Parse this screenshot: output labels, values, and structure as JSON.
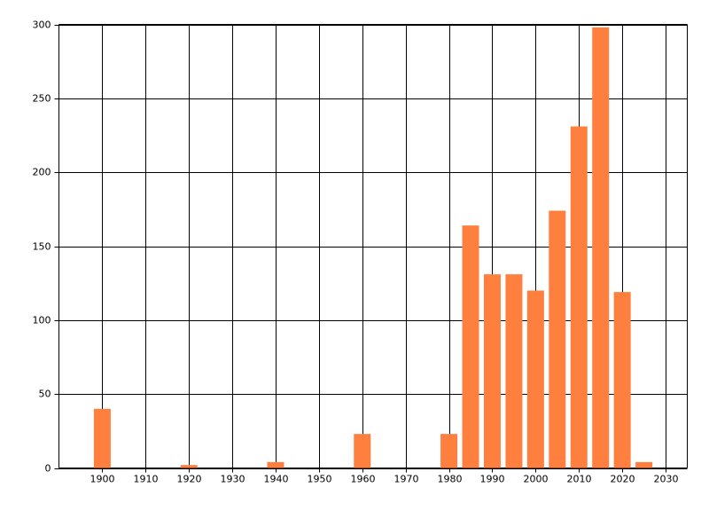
{
  "chart_data": {
    "type": "bar",
    "x": [
      1900,
      1920,
      1940,
      1960,
      1980,
      1985,
      1990,
      1995,
      2000,
      2005,
      2010,
      2015,
      2020,
      2025
    ],
    "values": [
      40,
      2,
      4,
      23,
      23,
      164,
      131,
      131,
      120,
      174,
      231,
      298,
      119,
      4
    ],
    "color": "#ff7f3f",
    "xlim": [
      1890,
      2035
    ],
    "xticks": [
      1900,
      1910,
      1920,
      1930,
      1940,
      1950,
      1960,
      1970,
      1980,
      1990,
      2000,
      2010,
      2020,
      2030
    ],
    "ylim": [
      0,
      300
    ],
    "yticks": [
      0,
      50,
      100,
      150,
      200,
      250,
      300
    ],
    "grid": true
  }
}
